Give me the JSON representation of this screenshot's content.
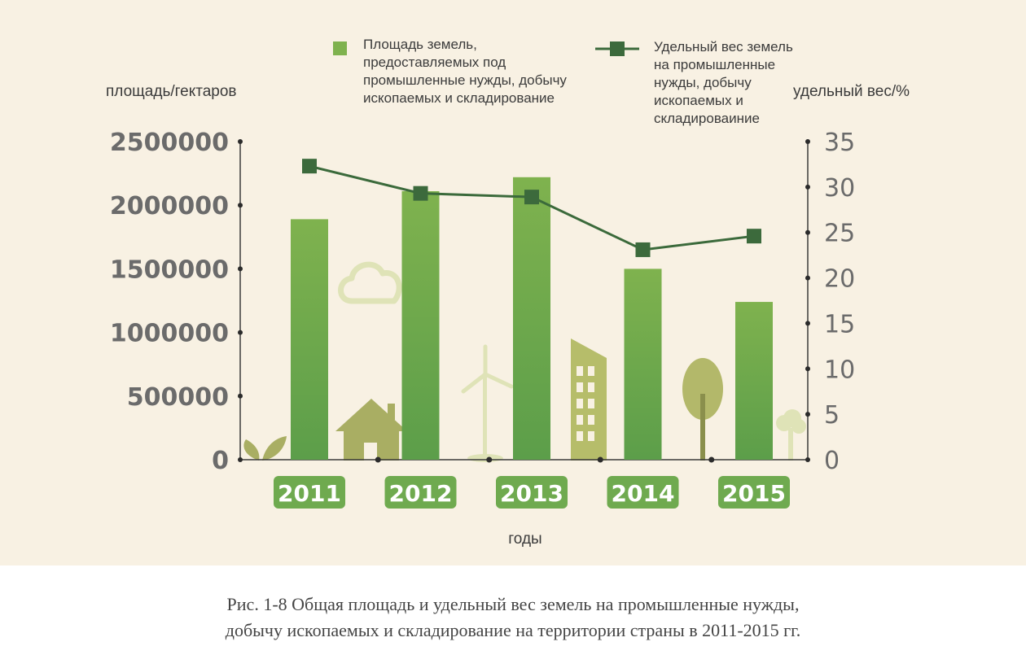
{
  "chart_data": {
    "type": "bar",
    "categories": [
      "2011",
      "2012",
      "2013",
      "2014",
      "2015"
    ],
    "xlabel": "годы",
    "ylabel_left": "площадь/гектаров",
    "ylabel_right": "удельный вес/%",
    "ylim_left": [
      0,
      2500000
    ],
    "yticks_left": [
      "0",
      "500000",
      "1000000",
      "1500000",
      "2000000",
      "2500000"
    ],
    "ylim_right": [
      0,
      35
    ],
    "yticks_right": [
      "0",
      "5",
      "10",
      "15",
      "20",
      "25",
      "30",
      "35"
    ],
    "series": [
      {
        "name": "Площадь земель, предоставляемых под промышленные нужды, добычу ископаемых и складирование",
        "type": "bar",
        "axis": "left",
        "values": [
          1890000,
          2110000,
          2220000,
          1500000,
          1240000
        ]
      },
      {
        "name": "Удельный вес земель на промышленные нужды, добычу ископаемых и складироваиние",
        "type": "line",
        "axis": "right",
        "values": [
          32.3,
          29.3,
          28.9,
          23.1,
          24.6
        ]
      }
    ],
    "legend_position": "top",
    "grid": false
  },
  "legend": {
    "bar_label": "Площадь земель,\nпредоставляемых под\nпромышленные нужды, добычу\nископаемых и складирование",
    "line_label": "Удельный вес земель\nна промышленные\nнужды, добычу\nископаемых и\nскладироваиние"
  },
  "colors": {
    "background": "#f8f1e3",
    "bar_top": "#7fb24e",
    "bar_bottom": "#5c9e4a",
    "line": "#3b6a3b",
    "marker": "#3c6a3c",
    "year_badge": "#6faa4f",
    "decor_light": "#dfe3b7",
    "decor_olive": "#a9ae63"
  },
  "caption": "Рис. 1-8 Общая площадь и удельный вес земель на промышленные нужды,\nдобычу ископаемых и складирование на территории страны в 2011-2015 гг."
}
